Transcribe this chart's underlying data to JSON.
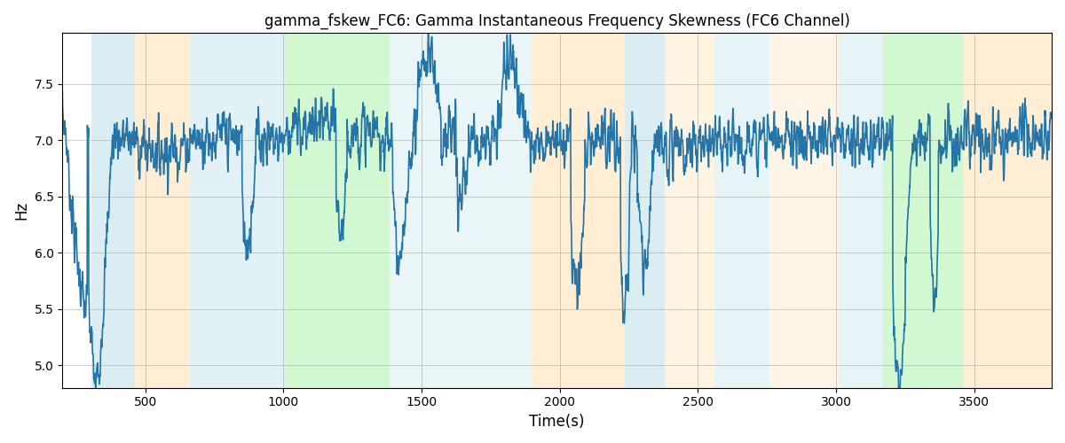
{
  "title": "gamma_fskew_FC6: Gamma Instantaneous Frequency Skewness (FC6 Channel)",
  "xlabel": "Time(s)",
  "ylabel": "Hz",
  "xlim": [
    200,
    3780
  ],
  "ylim": [
    4.8,
    7.95
  ],
  "yticks": [
    5.0,
    5.5,
    6.0,
    6.5,
    7.0,
    7.5
  ],
  "xticks": [
    500,
    1000,
    1500,
    2000,
    2500,
    3000,
    3500
  ],
  "line_color": "#2374a8",
  "line_width": 1.2,
  "bg_bands": [
    {
      "xmin": 305,
      "xmax": 462,
      "color": "#add8e6",
      "alpha": 0.45
    },
    {
      "xmin": 462,
      "xmax": 660,
      "color": "#ffd9a0",
      "alpha": 0.45
    },
    {
      "xmin": 660,
      "xmax": 1005,
      "color": "#add8e6",
      "alpha": 0.35
    },
    {
      "xmin": 1005,
      "xmax": 1385,
      "color": "#90ee90",
      "alpha": 0.4
    },
    {
      "xmin": 1385,
      "xmax": 1900,
      "color": "#add8e6",
      "alpha": 0.25
    },
    {
      "xmin": 1900,
      "xmax": 2235,
      "color": "#ffd9a0",
      "alpha": 0.45
    },
    {
      "xmin": 2235,
      "xmax": 2380,
      "color": "#add8e6",
      "alpha": 0.45
    },
    {
      "xmin": 2380,
      "xmax": 2560,
      "color": "#ffd9a0",
      "alpha": 0.3
    },
    {
      "xmin": 2560,
      "xmax": 2760,
      "color": "#add8e6",
      "alpha": 0.3
    },
    {
      "xmin": 2760,
      "xmax": 3010,
      "color": "#ffd9a0",
      "alpha": 0.25
    },
    {
      "xmin": 3010,
      "xmax": 3170,
      "color": "#add8e6",
      "alpha": 0.3
    },
    {
      "xmin": 3170,
      "xmax": 3460,
      "color": "#90ee90",
      "alpha": 0.4
    },
    {
      "xmin": 3460,
      "xmax": 3780,
      "color": "#ffd9a0",
      "alpha": 0.45
    }
  ]
}
